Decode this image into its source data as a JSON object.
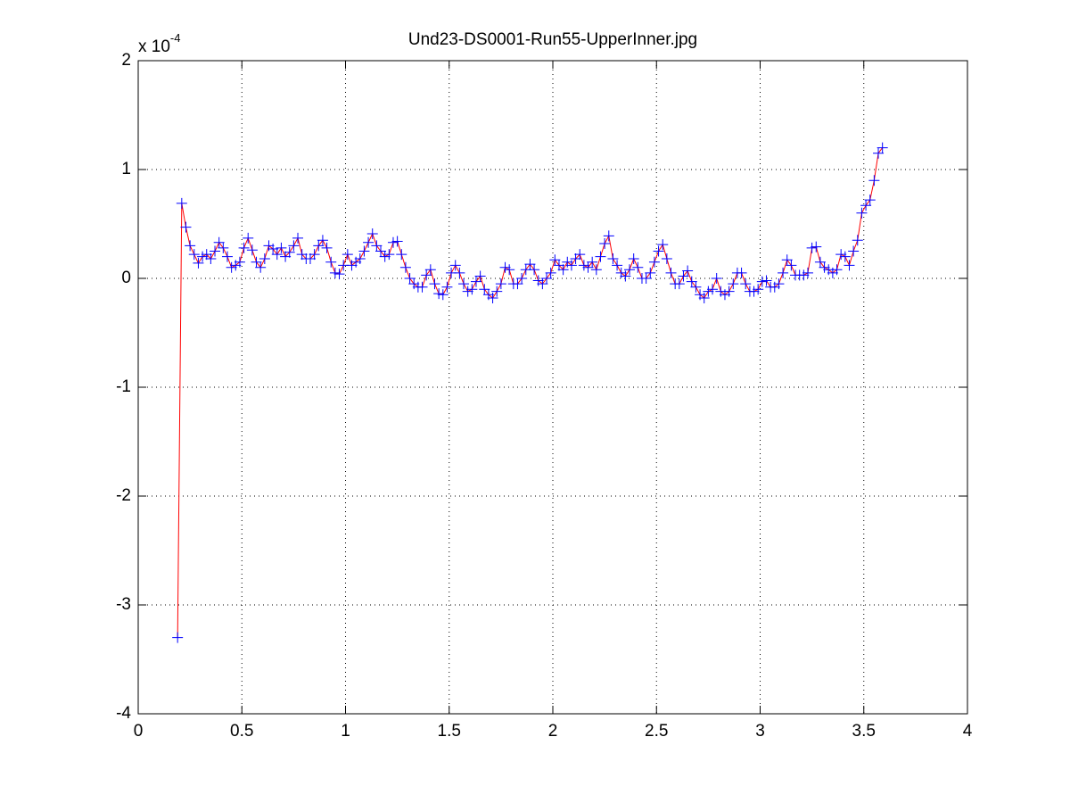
{
  "chart_data": {
    "type": "line",
    "title": "Und23-DS0001-Run55-UpperInner.jpg",
    "y_multiplier": "x 10",
    "y_multiplier_exponent": "-4",
    "xlim": [
      0,
      4
    ],
    "ylim": [
      -4,
      2
    ],
    "xticks": [
      0,
      0.5,
      1,
      1.5,
      2,
      2.5,
      3,
      3.5,
      4
    ],
    "yticks": [
      -4,
      -3,
      -2,
      -1,
      0,
      1,
      2
    ],
    "grid": true,
    "color": "#ff0000",
    "marker_color": "#0000ff",
    "marker": "+",
    "x": [
      0.19,
      0.21,
      0.23,
      0.25,
      0.27,
      0.29,
      0.31,
      0.33,
      0.35,
      0.37,
      0.39,
      0.41,
      0.43,
      0.45,
      0.47,
      0.49,
      0.51,
      0.53,
      0.55,
      0.57,
      0.59,
      0.61,
      0.63,
      0.65,
      0.67,
      0.69,
      0.71,
      0.73,
      0.75,
      0.77,
      0.79,
      0.81,
      0.83,
      0.85,
      0.87,
      0.89,
      0.91,
      0.93,
      0.95,
      0.97,
      0.99,
      1.01,
      1.03,
      1.05,
      1.07,
      1.09,
      1.11,
      1.13,
      1.15,
      1.17,
      1.19,
      1.21,
      1.23,
      1.25,
      1.27,
      1.29,
      1.31,
      1.33,
      1.35,
      1.37,
      1.39,
      1.41,
      1.43,
      1.45,
      1.47,
      1.49,
      1.51,
      1.53,
      1.55,
      1.57,
      1.59,
      1.61,
      1.63,
      1.65,
      1.67,
      1.69,
      1.71,
      1.73,
      1.75,
      1.77,
      1.79,
      1.81,
      1.83,
      1.85,
      1.87,
      1.89,
      1.91,
      1.93,
      1.95,
      1.97,
      1.99,
      2.01,
      2.03,
      2.05,
      2.07,
      2.09,
      2.11,
      2.13,
      2.15,
      2.17,
      2.19,
      2.21,
      2.23,
      2.25,
      2.27,
      2.29,
      2.31,
      2.33,
      2.35,
      2.37,
      2.39,
      2.41,
      2.43,
      2.45,
      2.47,
      2.49,
      2.51,
      2.53,
      2.55,
      2.57,
      2.59,
      2.61,
      2.63,
      2.65,
      2.67,
      2.69,
      2.71,
      2.73,
      2.75,
      2.77,
      2.79,
      2.81,
      2.83,
      2.85,
      2.87,
      2.89,
      2.91,
      2.93,
      2.95,
      2.97,
      2.99,
      3.01,
      3.03,
      3.05,
      3.07,
      3.09,
      3.11,
      3.13,
      3.15,
      3.17,
      3.19,
      3.21,
      3.23,
      3.25,
      3.27,
      3.29,
      3.31,
      3.33,
      3.35,
      3.37,
      3.39,
      3.41,
      3.43,
      3.45,
      3.47,
      3.49,
      3.51,
      3.53,
      3.55,
      3.57,
      3.59
    ],
    "values": [
      -3.3,
      0.69,
      0.47,
      0.3,
      0.22,
      0.14,
      0.2,
      0.22,
      0.18,
      0.25,
      0.33,
      0.28,
      0.2,
      0.1,
      0.12,
      0.15,
      0.28,
      0.37,
      0.26,
      0.15,
      0.1,
      0.18,
      0.3,
      0.27,
      0.22,
      0.28,
      0.2,
      0.24,
      0.3,
      0.37,
      0.22,
      0.18,
      0.18,
      0.22,
      0.3,
      0.35,
      0.28,
      0.15,
      0.05,
      0.04,
      0.12,
      0.22,
      0.12,
      0.15,
      0.18,
      0.25,
      0.33,
      0.41,
      0.3,
      0.25,
      0.2,
      0.22,
      0.33,
      0.34,
      0.22,
      0.1,
      0.0,
      -0.05,
      -0.08,
      -0.08,
      0.03,
      0.08,
      -0.05,
      -0.14,
      -0.15,
      -0.08,
      0.05,
      0.12,
      0.05,
      -0.05,
      -0.12,
      -0.1,
      -0.03,
      0.02,
      -0.1,
      -0.15,
      -0.18,
      -0.12,
      -0.05,
      0.1,
      0.08,
      -0.05,
      -0.05,
      0.0,
      0.08,
      0.13,
      0.08,
      -0.02,
      -0.05,
      0.0,
      0.05,
      0.17,
      0.12,
      0.08,
      0.15,
      0.12,
      0.18,
      0.22,
      0.12,
      0.1,
      0.15,
      0.08,
      0.2,
      0.32,
      0.39,
      0.18,
      0.12,
      0.05,
      0.02,
      0.08,
      0.18,
      0.1,
      0.0,
      0.0,
      0.05,
      0.15,
      0.25,
      0.31,
      0.18,
      0.05,
      -0.05,
      -0.05,
      0.02,
      0.07,
      -0.03,
      -0.08,
      -0.15,
      -0.18,
      -0.12,
      -0.1,
      0.0,
      -0.12,
      -0.15,
      -0.12,
      -0.05,
      0.05,
      0.05,
      -0.05,
      -0.12,
      -0.12,
      -0.1,
      -0.03,
      -0.02,
      -0.08,
      -0.08,
      -0.05,
      0.05,
      0.17,
      0.12,
      0.03,
      0.03,
      0.03,
      0.05,
      0.28,
      0.29,
      0.15,
      0.1,
      0.08,
      0.05,
      0.08,
      0.22,
      0.2,
      0.12,
      0.25,
      0.35,
      0.6,
      0.67,
      0.72,
      0.9,
      1.15,
      1.2
    ]
  }
}
